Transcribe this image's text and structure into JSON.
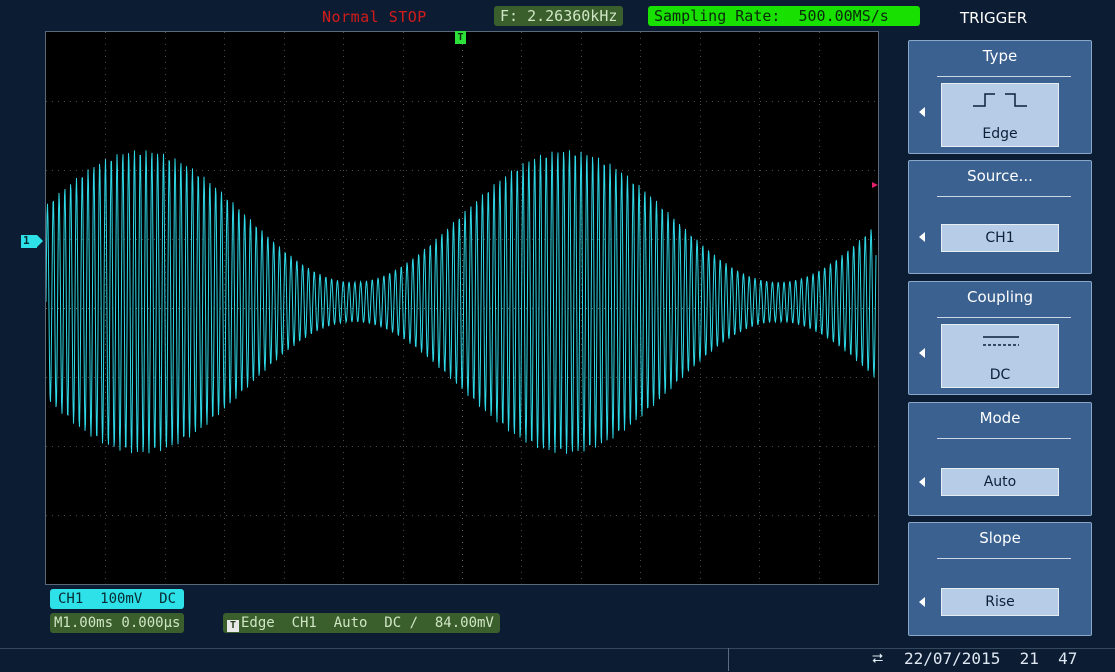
{
  "status": {
    "run_state": "Normal  STOP",
    "frequency": "F: 2.26360kHz",
    "sampling_rate": "Sampling Rate:  500.00MS/s"
  },
  "menu": {
    "title": "TRIGGER",
    "items": [
      {
        "label": "Type",
        "value": "Edge",
        "icon": "edge-trigger-icon"
      },
      {
        "label": "Source...",
        "value": "CH1"
      },
      {
        "label": "Coupling",
        "value": "DC",
        "icon": "dc-coupling-icon"
      },
      {
        "label": "Mode",
        "value": "Auto"
      },
      {
        "label": "Slope",
        "value": "Rise"
      }
    ]
  },
  "markers": {
    "channel": "1",
    "trigger_pos": "T"
  },
  "channel_info": "CH1  100mV  DC",
  "timebase": "M1.00ms 0.000μs",
  "trigger_info": "Edge  CH1  Auto  DC ∕  84.00mV",
  "trigger_icon_letter": "T",
  "datetime": "22/07/2015  21  47",
  "colors": {
    "waveform": "#2fd8e6",
    "background": "#0c1c33",
    "screen": "#000000",
    "menu": "#3a6190",
    "status_green": "#18e000",
    "trigger_marker": "#e0206a"
  }
}
